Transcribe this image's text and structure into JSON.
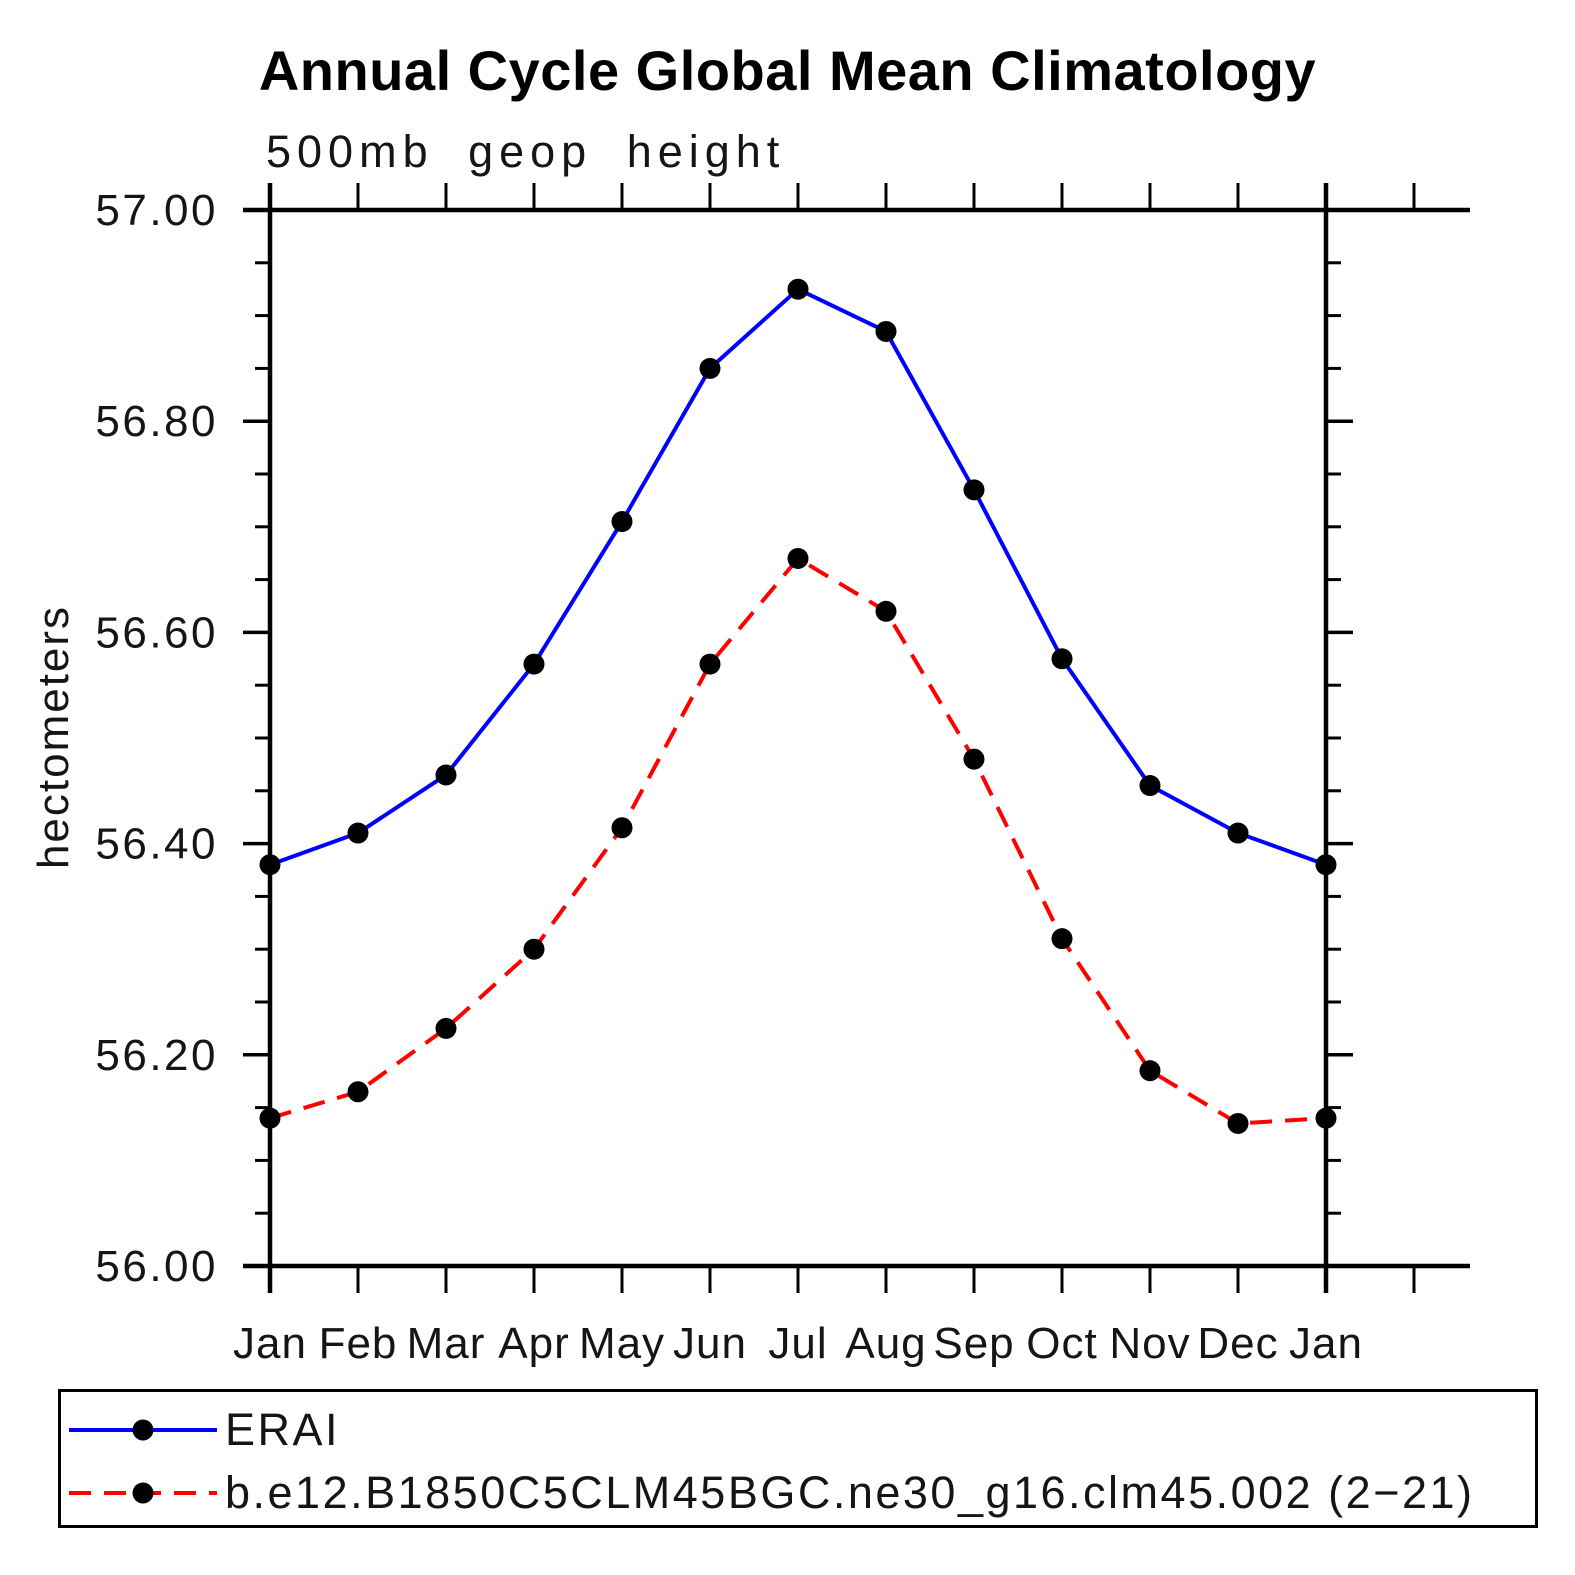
{
  "title": "Annual Cycle Global Mean Climatology",
  "subtitle": "500mb geop height",
  "y_axis": {
    "label": "hectometers",
    "tick_labels": [
      "57.00",
      "56.80",
      "56.60",
      "56.40",
      "56.20",
      "56.00"
    ],
    "min": 56.0,
    "max": 57.0,
    "major_step": 0.2,
    "minor_step": 0.05
  },
  "x_axis": {
    "labels": [
      "Jan",
      "Feb",
      "Mar",
      "Apr",
      "May",
      "Jun",
      "Jul",
      "Aug",
      "Sep",
      "Oct",
      "Nov",
      "Dec",
      "Jan"
    ]
  },
  "legend": {
    "entries": [
      {
        "label": "ERAI",
        "color": "#0000ff",
        "style": "solid",
        "marker": "filled-circle"
      },
      {
        "label": "b.e12.B1850C5CLM45BGC.ne30_g16.clm45.002 (2−21)",
        "color": "#ff0000",
        "style": "dashed",
        "marker": "filled-circle"
      }
    ]
  },
  "chart_data": {
    "type": "line",
    "title": "Annual Cycle Global Mean Climatology",
    "subtitle": "500mb geop height",
    "ylabel": "hectometers",
    "categories": [
      "Jan",
      "Feb",
      "Mar",
      "Apr",
      "May",
      "Jun",
      "Jul",
      "Aug",
      "Sep",
      "Oct",
      "Nov",
      "Dec",
      "Jan"
    ],
    "series": [
      {
        "name": "ERAI",
        "color": "#0000ff",
        "style": "solid",
        "marker": "filled-circle",
        "marker_color": "#000000",
        "values": [
          56.38,
          56.41,
          56.465,
          56.57,
          56.705,
          56.85,
          56.925,
          56.885,
          56.735,
          56.575,
          56.455,
          56.41,
          56.38
        ]
      },
      {
        "name": "b.e12.B1850C5CLM45BGC.ne30_g16.clm45.002 (2−21)",
        "color": "#ff0000",
        "style": "dashed",
        "marker": "filled-circle",
        "marker_color": "#000000",
        "values": [
          56.14,
          56.165,
          56.225,
          56.3,
          56.415,
          56.57,
          56.67,
          56.62,
          56.48,
          56.31,
          56.185,
          56.135,
          56.14
        ]
      }
    ],
    "ylim": [
      56.0,
      57.0
    ],
    "ytick_major": 0.2,
    "ytick_minor": 0.05,
    "grid": false,
    "legend_position": "bottom"
  }
}
